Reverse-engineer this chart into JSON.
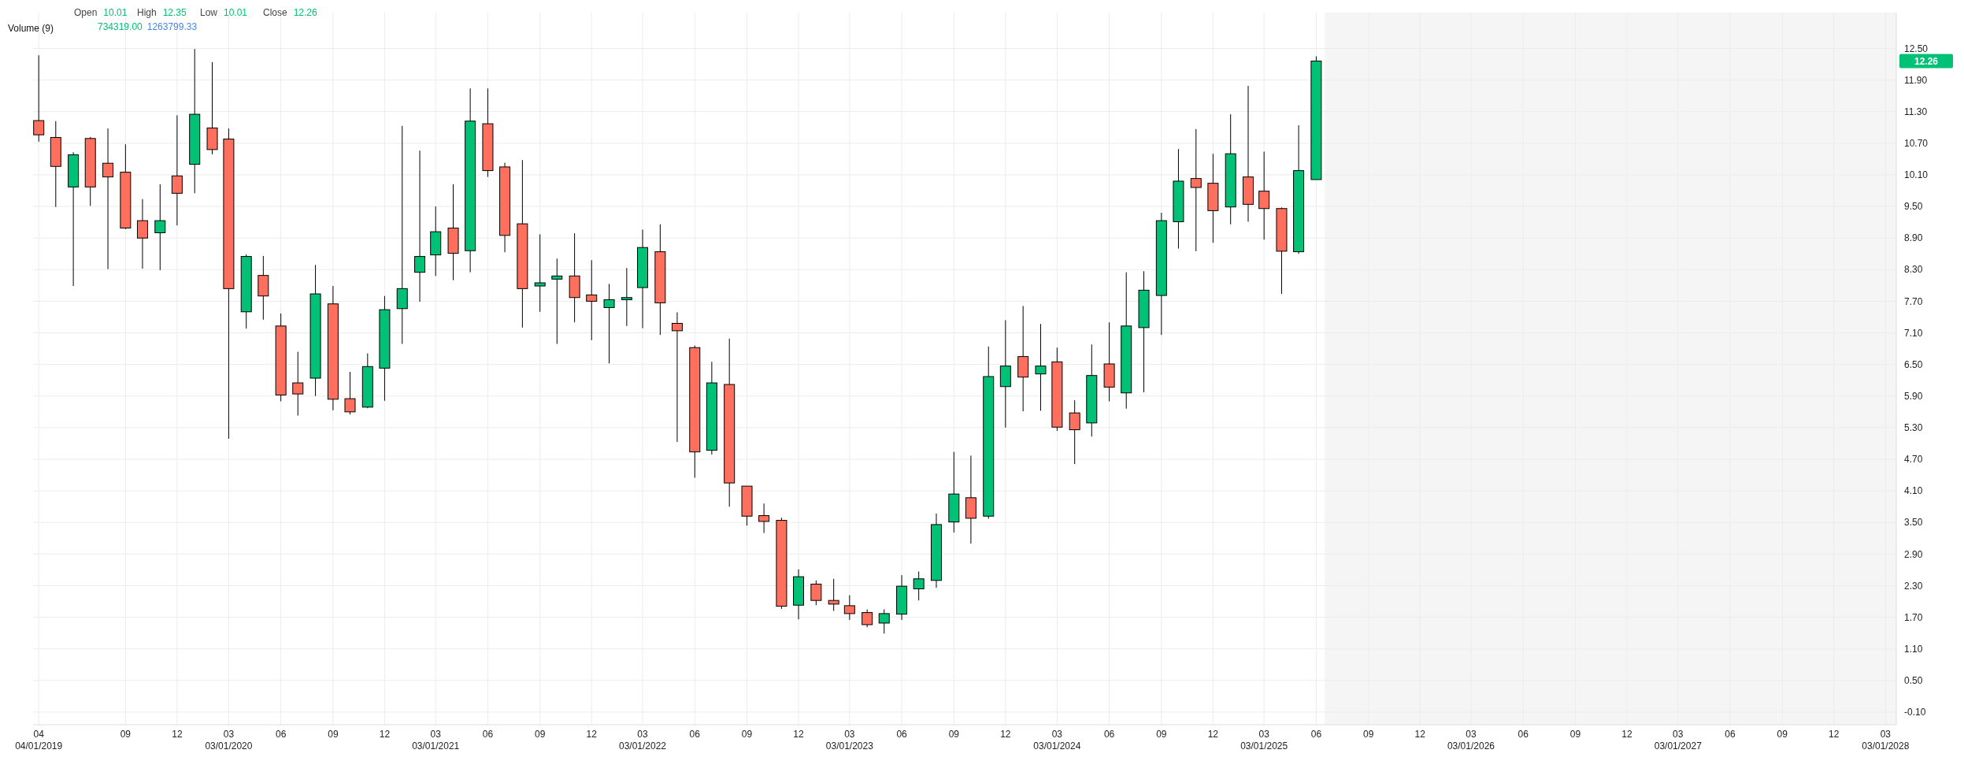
{
  "chart_data": {
    "type": "candlestick",
    "annotations": [
      "Open 10.01",
      "High 12.35",
      "Low 10.01",
      "Close 12.26",
      "Volume (9)",
      "734319.00 1263799.33",
      "12.26"
    ],
    "x": [
      "2019-04",
      "2019-05",
      "2019-06",
      "2019-07",
      "2019-08",
      "2019-09",
      "2019-10",
      "2019-11",
      "2019-12",
      "2020-01",
      "2020-02",
      "2020-03",
      "2020-04",
      "2020-05",
      "2020-06",
      "2020-07",
      "2020-08",
      "2020-09",
      "2020-10",
      "2020-11",
      "2020-12",
      "2021-01",
      "2021-02",
      "2021-03",
      "2021-04",
      "2021-05",
      "2021-06",
      "2021-07",
      "2021-08",
      "2021-09",
      "2021-10",
      "2021-11",
      "2021-12",
      "2022-01",
      "2022-02",
      "2022-03",
      "2022-04",
      "2022-05",
      "2022-06",
      "2022-07",
      "2022-08",
      "2022-09",
      "2022-10",
      "2022-11",
      "2022-12",
      "2023-01",
      "2023-02",
      "2023-03",
      "2023-04",
      "2023-05",
      "2023-06",
      "2023-07",
      "2023-08",
      "2023-09",
      "2023-10",
      "2023-11",
      "2023-12",
      "2024-01",
      "2024-02",
      "2024-03",
      "2024-04",
      "2024-05",
      "2024-06",
      "2024-07",
      "2024-08",
      "2024-09",
      "2024-10",
      "2024-11",
      "2024-12",
      "2025-01",
      "2025-02",
      "2025-03",
      "2025-04",
      "2025-05",
      "2025-06"
    ],
    "ohlc": [
      [
        11.13,
        12.37,
        10.73,
        10.86
      ],
      [
        10.81,
        11.12,
        9.49,
        10.26
      ],
      [
        9.87,
        10.53,
        7.99,
        10.48
      ],
      [
        10.79,
        10.82,
        9.51,
        9.87
      ],
      [
        10.32,
        10.98,
        8.31,
        10.06
      ],
      [
        10.15,
        10.68,
        9.07,
        9.09
      ],
      [
        9.23,
        9.64,
        8.32,
        8.9
      ],
      [
        9.0,
        9.92,
        8.29,
        9.23
      ],
      [
        10.08,
        11.23,
        9.14,
        9.75
      ],
      [
        10.3,
        12.49,
        9.75,
        11.25
      ],
      [
        10.99,
        12.24,
        10.49,
        10.58
      ],
      [
        10.78,
        10.98,
        5.09,
        7.94
      ],
      [
        7.5,
        8.59,
        7.18,
        8.55
      ],
      [
        8.19,
        8.56,
        7.35,
        7.8
      ],
      [
        7.23,
        7.47,
        5.8,
        5.92
      ],
      [
        6.15,
        6.74,
        5.53,
        5.94
      ],
      [
        6.24,
        8.39,
        5.9,
        7.84
      ],
      [
        7.65,
        7.99,
        5.63,
        5.84
      ],
      [
        5.85,
        6.36,
        5.55,
        5.6
      ],
      [
        5.69,
        6.71,
        5.67,
        6.46
      ],
      [
        6.43,
        7.8,
        5.81,
        7.54
      ],
      [
        7.56,
        11.03,
        6.89,
        7.94
      ],
      [
        8.25,
        10.56,
        7.69,
        8.55
      ],
      [
        8.58,
        9.5,
        8.18,
        9.02
      ],
      [
        9.09,
        9.92,
        8.1,
        8.61
      ],
      [
        8.66,
        11.74,
        8.25,
        11.12
      ],
      [
        11.07,
        11.74,
        10.06,
        10.18
      ],
      [
        10.25,
        10.33,
        8.63,
        8.95
      ],
      [
        9.17,
        10.38,
        7.2,
        7.94
      ],
      [
        7.99,
        8.97,
        7.5,
        8.05
      ],
      [
        8.12,
        8.51,
        6.89,
        8.18
      ],
      [
        8.18,
        8.99,
        7.3,
        7.77
      ],
      [
        7.82,
        8.48,
        6.96,
        7.7
      ],
      [
        7.58,
        8.03,
        6.52,
        7.73
      ],
      [
        7.73,
        8.33,
        7.23,
        7.77
      ],
      [
        7.96,
        9.06,
        7.19,
        8.72
      ],
      [
        8.64,
        9.16,
        7.06,
        7.67
      ],
      [
        7.28,
        7.49,
        5.03,
        7.14
      ],
      [
        6.82,
        6.86,
        4.35,
        4.84
      ],
      [
        4.87,
        6.55,
        4.79,
        6.15
      ],
      [
        6.12,
        6.99,
        3.8,
        4.25
      ],
      [
        4.19,
        4.19,
        3.44,
        3.62
      ],
      [
        3.63,
        3.86,
        3.3,
        3.52
      ],
      [
        3.54,
        3.59,
        1.86,
        1.91
      ],
      [
        1.93,
        2.61,
        1.66,
        2.47
      ],
      [
        2.33,
        2.4,
        1.93,
        2.02
      ],
      [
        2.02,
        2.43,
        1.82,
        1.95
      ],
      [
        1.92,
        2.12,
        1.65,
        1.77
      ],
      [
        1.79,
        1.85,
        1.51,
        1.56
      ],
      [
        1.59,
        1.85,
        1.39,
        1.77
      ],
      [
        1.76,
        2.5,
        1.65,
        2.29
      ],
      [
        2.24,
        2.57,
        2.02,
        2.43
      ],
      [
        2.4,
        3.67,
        2.26,
        3.46
      ],
      [
        3.51,
        4.84,
        3.31,
        4.04
      ],
      [
        3.97,
        4.77,
        3.1,
        3.58
      ],
      [
        3.62,
        6.84,
        3.57,
        6.27
      ],
      [
        6.08,
        7.34,
        5.3,
        6.47
      ],
      [
        6.65,
        7.61,
        5.61,
        6.26
      ],
      [
        6.32,
        7.27,
        5.62,
        6.47
      ],
      [
        6.55,
        6.82,
        5.24,
        5.31
      ],
      [
        5.58,
        5.82,
        4.61,
        5.26
      ],
      [
        5.39,
        6.88,
        5.13,
        6.29
      ],
      [
        6.51,
        7.3,
        5.8,
        6.07
      ],
      [
        5.96,
        8.25,
        5.66,
        7.23
      ],
      [
        7.2,
        8.27,
        5.97,
        7.91
      ],
      [
        7.81,
        9.38,
        7.06,
        9.23
      ],
      [
        9.21,
        10.59,
        8.7,
        9.98
      ],
      [
        10.03,
        10.97,
        8.65,
        9.86
      ],
      [
        9.94,
        10.5,
        8.81,
        9.42
      ],
      [
        9.49,
        11.25,
        9.16,
        10.5
      ],
      [
        10.06,
        11.79,
        9.21,
        9.54
      ],
      [
        9.79,
        10.54,
        8.87,
        9.46
      ],
      [
        9.46,
        9.48,
        7.84,
        8.65
      ],
      [
        8.64,
        11.04,
        8.6,
        10.18
      ],
      [
        10.01,
        12.35,
        10.01,
        12.26
      ]
    ],
    "xlim": [
      "2019-03-22",
      "2028-03-20"
    ],
    "xticks": [
      {
        "value": "2019-04-01",
        "label": "04\n04/01/2019"
      },
      {
        "value": "2019-09-01",
        "label": "09"
      },
      {
        "value": "2019-12-01",
        "label": "12"
      },
      {
        "value": "2020-03-01",
        "label": "03\n03/01/2020"
      },
      {
        "value": "2020-06-01",
        "label": "06"
      },
      {
        "value": "2020-09-01",
        "label": "09"
      },
      {
        "value": "2020-12-01",
        "label": "12"
      },
      {
        "value": "2021-03-01",
        "label": "03\n03/01/2021"
      },
      {
        "value": "2021-06-01",
        "label": "06"
      },
      {
        "value": "2021-09-01",
        "label": "09"
      },
      {
        "value": "2021-12-01",
        "label": "12"
      },
      {
        "value": "2022-03-01",
        "label": "03\n03/01/2022"
      },
      {
        "value": "2022-06-01",
        "label": "06"
      },
      {
        "value": "2022-09-01",
        "label": "09"
      },
      {
        "value": "2022-12-01",
        "label": "12"
      },
      {
        "value": "2023-03-01",
        "label": "03\n03/01/2023"
      },
      {
        "value": "2023-06-01",
        "label": "06"
      },
      {
        "value": "2023-09-01",
        "label": "09"
      },
      {
        "value": "2023-12-01",
        "label": "12"
      },
      {
        "value": "2024-03-01",
        "label": "03\n03/01/2024"
      },
      {
        "value": "2024-06-01",
        "label": "06"
      },
      {
        "value": "2024-09-01",
        "label": "09"
      },
      {
        "value": "2024-12-01",
        "label": "12"
      },
      {
        "value": "2025-03-01",
        "label": "03\n03/01/2025"
      },
      {
        "value": "2025-06-01",
        "label": "06"
      },
      {
        "value": "2025-09-01",
        "label": "09"
      },
      {
        "value": "2025-12-01",
        "label": "12"
      },
      {
        "value": "2026-03-01",
        "label": "03\n03/01/2026"
      },
      {
        "value": "2026-06-01",
        "label": "06"
      },
      {
        "value": "2026-09-01",
        "label": "09"
      },
      {
        "value": "2026-12-01",
        "label": "12"
      },
      {
        "value": "2027-03-01",
        "label": "03\n03/01/2027"
      },
      {
        "value": "2027-06-01",
        "label": "06"
      },
      {
        "value": "2027-09-01",
        "label": "09"
      },
      {
        "value": "2027-12-01",
        "label": "12"
      },
      {
        "value": "2028-03-01",
        "label": "03\n03/01/2028"
      }
    ],
    "ylim": [
      -0.34,
      13.18
    ],
    "yticks": [
      {
        "value": -0.1,
        "label": "-0.10"
      },
      {
        "value": 0.5,
        "label": "0.50"
      },
      {
        "value": 1.1,
        "label": "1.10"
      },
      {
        "value": 1.7,
        "label": "1.70"
      },
      {
        "value": 2.3,
        "label": "2.30"
      },
      {
        "value": 2.9,
        "label": "2.90"
      },
      {
        "value": 3.5,
        "label": "3.50"
      },
      {
        "value": 4.1,
        "label": "4.10"
      },
      {
        "value": 4.7,
        "label": "4.70"
      },
      {
        "value": 5.3,
        "label": "5.30"
      },
      {
        "value": 5.9,
        "label": "5.90"
      },
      {
        "value": 6.5,
        "label": "6.50"
      },
      {
        "value": 7.1,
        "label": "7.10"
      },
      {
        "value": 7.7,
        "label": "7.70"
      },
      {
        "value": 8.3,
        "label": "8.30"
      },
      {
        "value": 8.9,
        "label": "8.90"
      },
      {
        "value": 9.5,
        "label": "9.50"
      },
      {
        "value": 10.1,
        "label": "10.10"
      },
      {
        "value": 10.7,
        "label": "10.70"
      },
      {
        "value": 11.3,
        "label": "11.30"
      },
      {
        "value": 11.9,
        "label": "11.90"
      },
      {
        "value": 12.5,
        "label": "12.50"
      }
    ],
    "bands": [
      {
        "axis": "x",
        "from": "2025-06-16",
        "to": "2028-03-20",
        "color": "#f5f5f5"
      }
    ],
    "grid": true
  }
}
